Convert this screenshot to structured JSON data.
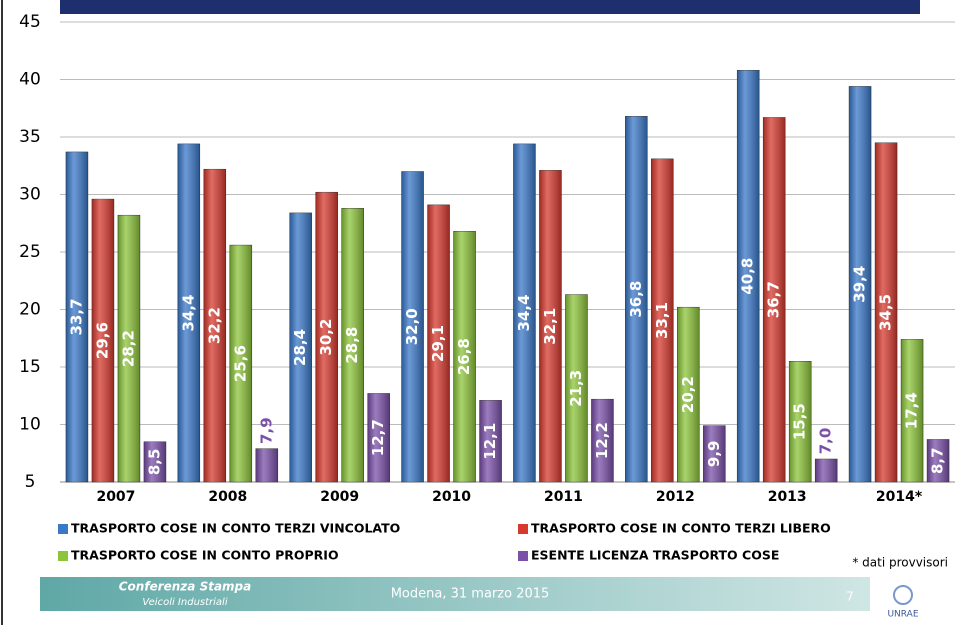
{
  "chart_data": {
    "type": "bar",
    "categories": [
      "2007",
      "2008",
      "2009",
      "2010",
      "2011",
      "2012",
      "2013",
      "2014*"
    ],
    "series": [
      {
        "name": "TRASPORTO COSE IN CONTO TERZI VINCOLATO",
        "color": "#3a78c8",
        "values": [
          33.7,
          34.4,
          28.4,
          32.0,
          34.4,
          36.8,
          40.8,
          39.4
        ],
        "value_labels": [
          "33,7",
          "34,4",
          "28,4",
          "32,0",
          "34,4",
          "36,8",
          "40,8",
          "39,4"
        ]
      },
      {
        "name": "TRASPORTO COSE IN CONTO TERZI LIBERO",
        "color": "#d63a2f",
        "values": [
          29.6,
          32.2,
          30.2,
          29.1,
          32.1,
          33.1,
          36.7,
          34.5
        ],
        "value_labels": [
          "29,6",
          "32,2",
          "30,2",
          "29,1",
          "32,1",
          "33,1",
          "36,7",
          "34,5"
        ]
      },
      {
        "name": "TRASPORTO COSE IN CONTO PROPRIO",
        "color": "#8cc43a",
        "values": [
          28.2,
          25.6,
          28.8,
          26.8,
          21.3,
          20.2,
          15.5,
          17.4
        ],
        "value_labels": [
          "28,2",
          "25,6",
          "28,8",
          "26,8",
          "21,3",
          "20,2",
          "15,5",
          "17,4"
        ]
      },
      {
        "name": "ESENTE LICENZA TRASPORTO COSE",
        "color": "#7a50a8",
        "values": [
          8.5,
          7.9,
          12.7,
          12.1,
          12.2,
          9.9,
          7.0,
          8.7
        ],
        "value_labels": [
          "8,5",
          "7,9",
          "12,7",
          "12,1",
          "12,2",
          "9,9",
          "7,0",
          "8,7"
        ]
      }
    ],
    "ylim": [
      5,
      45
    ],
    "yticks": [
      5,
      10,
      15,
      20,
      25,
      30,
      35,
      40,
      45
    ],
    "grid": true,
    "note": "* dati provvisori"
  },
  "footer": {
    "event": "Conferenza Stampa",
    "subtitle": "Veicoli Industriali",
    "location_date": "Modena, 31 marzo 2015",
    "page": "7",
    "logo": "UNRAE"
  }
}
